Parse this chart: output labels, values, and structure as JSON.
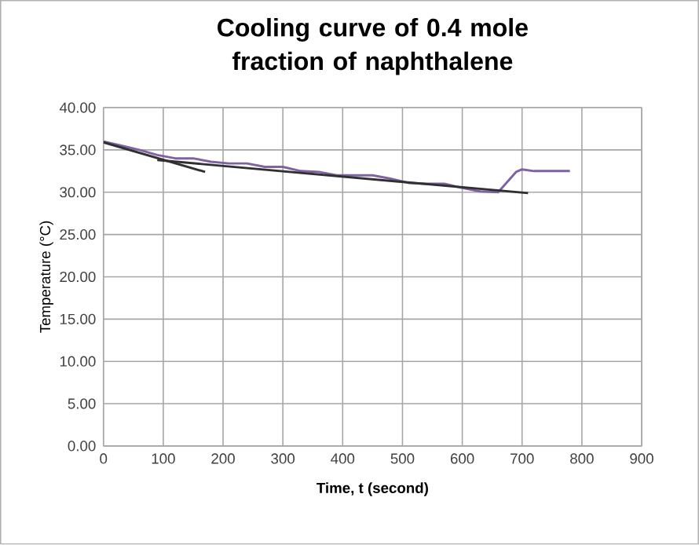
{
  "chart_data": {
    "type": "line",
    "title": "Cooling curve of 0.4 mole fraction of naphthalene",
    "xlabel": "Time, t (second)",
    "ylabel": "Temperature (°C)",
    "xlim": [
      0,
      900
    ],
    "ylim": [
      0,
      40
    ],
    "xticks": [
      0,
      100,
      200,
      300,
      400,
      500,
      600,
      700,
      800,
      900
    ],
    "yticks": [
      {
        "value": 0,
        "label": "0.00"
      },
      {
        "value": 5,
        "label": "5.00"
      },
      {
        "value": 10,
        "label": "10.00"
      },
      {
        "value": 15,
        "label": "15.00"
      },
      {
        "value": 20,
        "label": "20.00"
      },
      {
        "value": 25,
        "label": "25.00"
      },
      {
        "value": 30,
        "label": "30.00"
      },
      {
        "value": 35,
        "label": "35.00"
      },
      {
        "value": 40,
        "label": "40.00"
      }
    ],
    "grid": true,
    "marker": "none",
    "line_style": "solid",
    "series": [
      {
        "color": "#7f62a3",
        "x": [
          0,
          30,
          60,
          90,
          120,
          150,
          180,
          210,
          240,
          270,
          300,
          330,
          360,
          390,
          420,
          450,
          480,
          510,
          540,
          570,
          600,
          630,
          660,
          690,
          700,
          720,
          750,
          780
        ],
        "values": [
          36,
          35.5,
          35,
          34.4,
          34,
          34,
          33.6,
          33.4,
          33.4,
          33,
          33,
          32.5,
          32.4,
          32,
          32,
          32,
          31.6,
          31.1,
          31,
          31,
          30.5,
          30.1,
          30,
          32.4,
          32.7,
          32.5,
          32.5,
          32.5
        ]
      },
      {
        "color": "#303030",
        "x": [
          0,
          170
        ],
        "values": [
          35.9,
          32.4
        ]
      },
      {
        "color": "#303030",
        "x": [
          90,
          710
        ],
        "values": [
          33.8,
          29.9
        ]
      }
    ]
  }
}
